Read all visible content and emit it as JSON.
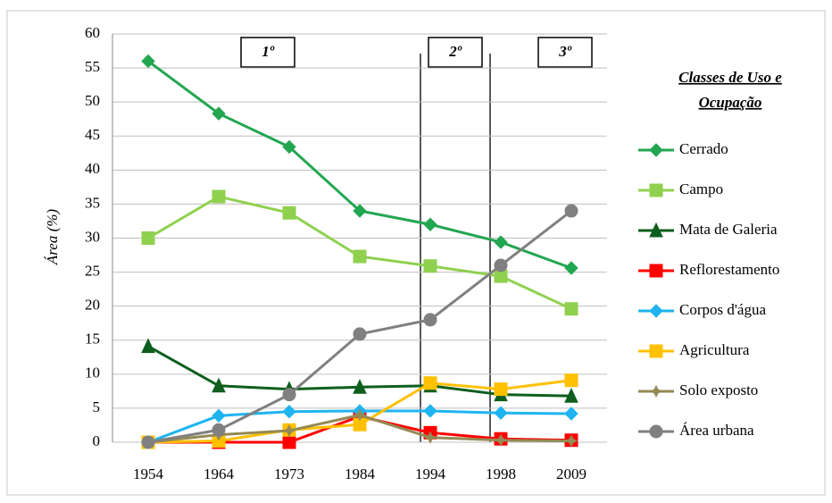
{
  "chart_data": {
    "type": "line",
    "y_label": "Área (%)",
    "legend_title": [
      "Classes de Uso e",
      "Ocupação"
    ],
    "annotations": [
      "1º",
      "2º",
      "3º"
    ],
    "categories": [
      "1954",
      "1964",
      "1973",
      "1984",
      "1994",
      "1998",
      "2009"
    ],
    "ylim": [
      0,
      60
    ],
    "yticks": [
      0,
      5,
      10,
      15,
      20,
      25,
      30,
      35,
      40,
      45,
      50,
      55,
      60
    ],
    "grid": true,
    "series": [
      {
        "name": "Cerrado",
        "color": "#23a651",
        "marker": "diamond",
        "values": [
          56,
          48.3,
          43.4,
          34,
          32,
          29.4,
          25.6
        ]
      },
      {
        "name": "Campo",
        "color": "#8fd14f",
        "marker": "square",
        "values": [
          30,
          36.1,
          33.7,
          27.3,
          25.9,
          24.4,
          19.6
        ]
      },
      {
        "name": "Mata de Galeria",
        "color": "#0e5e1d",
        "marker": "triangle",
        "values": [
          14.1,
          8.3,
          7.8,
          8.1,
          8.3,
          7,
          6.8
        ]
      },
      {
        "name": "Reflorestamento",
        "color": "#ff0000",
        "marker": "square",
        "values": [
          0,
          0,
          0,
          3.8,
          1.4,
          0.5,
          0.3
        ]
      },
      {
        "name": "Corpos d'água",
        "color": "#1fb4f0",
        "marker": "diamond",
        "values": [
          0,
          3.9,
          4.5,
          4.6,
          4.6,
          4.3,
          4.2
        ]
      },
      {
        "name": "Agricultura",
        "color": "#ffc000",
        "marker": "square",
        "values": [
          0,
          0.2,
          1.8,
          2.6,
          8.7,
          7.8,
          9.1
        ]
      },
      {
        "name": "Solo exposto",
        "color": "#948a54",
        "marker": "star",
        "values": [
          0,
          1.1,
          1.7,
          4,
          0.7,
          0.3,
          0.2
        ]
      },
      {
        "name": "Área urbana",
        "color": "#808080",
        "marker": "circle",
        "values": [
          0,
          1.8,
          7,
          15.9,
          18,
          26,
          34
        ]
      }
    ]
  }
}
